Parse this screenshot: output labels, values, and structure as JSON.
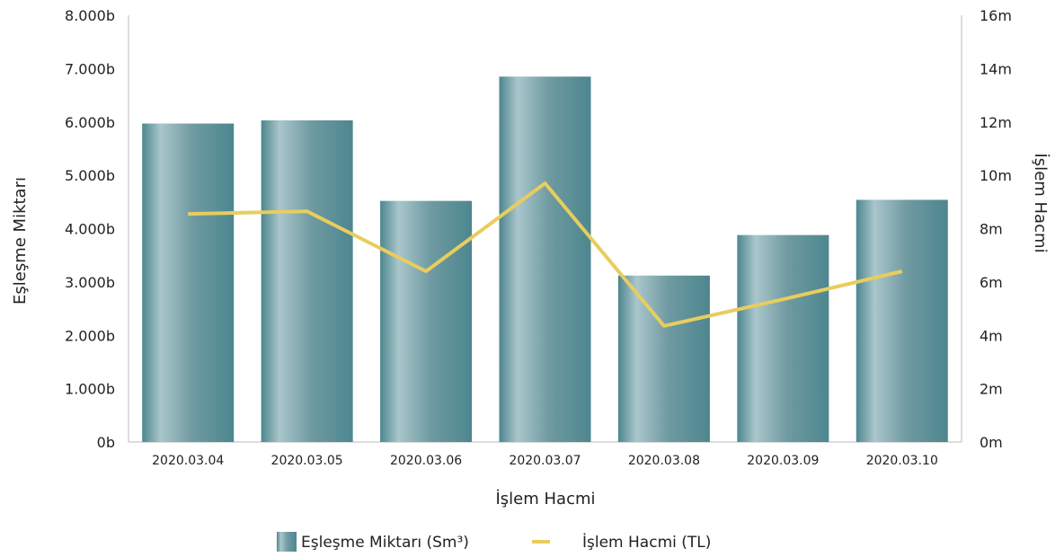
{
  "chart_data": {
    "type": "bar",
    "categories": [
      "2020.03.04",
      "2020.03.05",
      "2020.03.06",
      "2020.03.07",
      "2020.03.08",
      "2020.03.09",
      "2020.03.10"
    ],
    "series": [
      {
        "name": "Eşleşme Miktarı (Sm³)",
        "type": "bar",
        "axis": "left",
        "values": [
          5970,
          6030,
          4520,
          6850,
          3120,
          3880,
          4540
        ]
      },
      {
        "name": "İşlem Hacmi (TL)",
        "type": "line",
        "axis": "right",
        "values": [
          8.55,
          8.65,
          6.4,
          9.7,
          4.35,
          5.35,
          6.4
        ]
      }
    ],
    "xlabel": "İşlem Hacmi",
    "ylabel_left": "Eşleşme Miktarı",
    "ylabel_right": "İşlem Hacmi",
    "ylim_left": [
      0,
      8000
    ],
    "ylim_right": [
      0,
      16
    ],
    "yticks_left": [
      "0b",
      "1.000b",
      "2.000b",
      "3.000b",
      "4.000b",
      "5.000b",
      "6.000b",
      "7.000b",
      "8.000b"
    ],
    "yticks_right": [
      "0m",
      "2m",
      "4m",
      "6m",
      "8m",
      "10m",
      "12m",
      "14m",
      "16m"
    ],
    "grid": false,
    "legend_position": "bottom",
    "colors": {
      "bar_light": "#a9c6cb",
      "bar_mid": "#6f9aa1",
      "bar_dark": "#4d868f",
      "line": "#e8cd5e",
      "axis": "#bbbbbb"
    }
  }
}
